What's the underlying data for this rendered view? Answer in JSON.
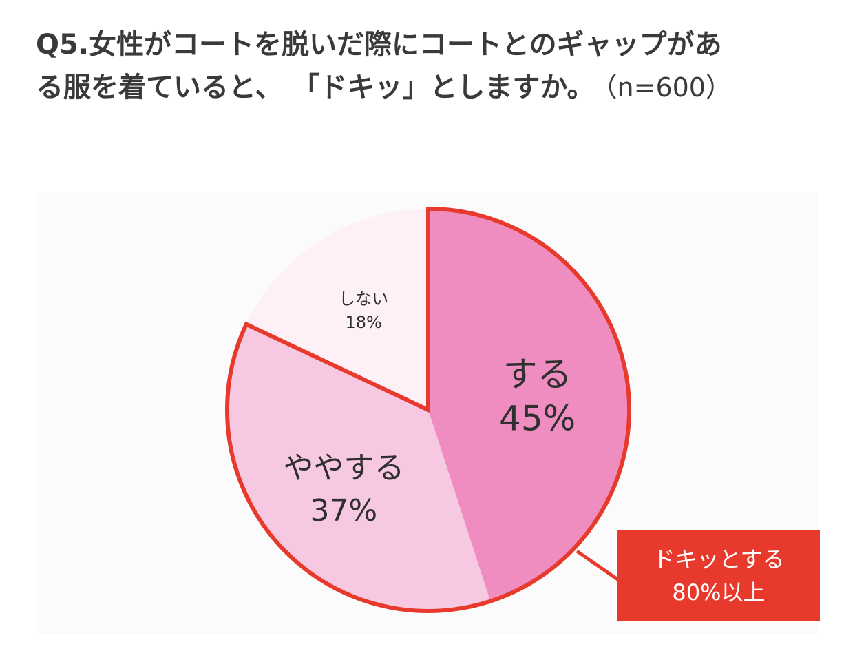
{
  "title": {
    "line1": "Q5.女性がコートを脱いだ際にコートとのギャップがあ",
    "line2": "る服を着ていると、 「ドキッ」としますか。",
    "n_label": "（n=600）"
  },
  "chart_data": {
    "type": "pie",
    "slices": [
      {
        "label": "する",
        "value": 45,
        "value_label": "45%",
        "color": "#ef8dc0"
      },
      {
        "label": "ややする",
        "value": 37,
        "value_label": "37%",
        "color": "#f7c8e2"
      },
      {
        "label": "しない",
        "value": 18,
        "value_label": "18%",
        "color": "#fdf0f6"
      }
    ],
    "start": "12 o'clock",
    "direction": "clockwise",
    "highlight_color": "#e83a2c",
    "highlighted_slices": [
      "する",
      "ややする"
    ],
    "annotation": {
      "line1": "ドキッとする",
      "line2": "80%以上"
    }
  }
}
